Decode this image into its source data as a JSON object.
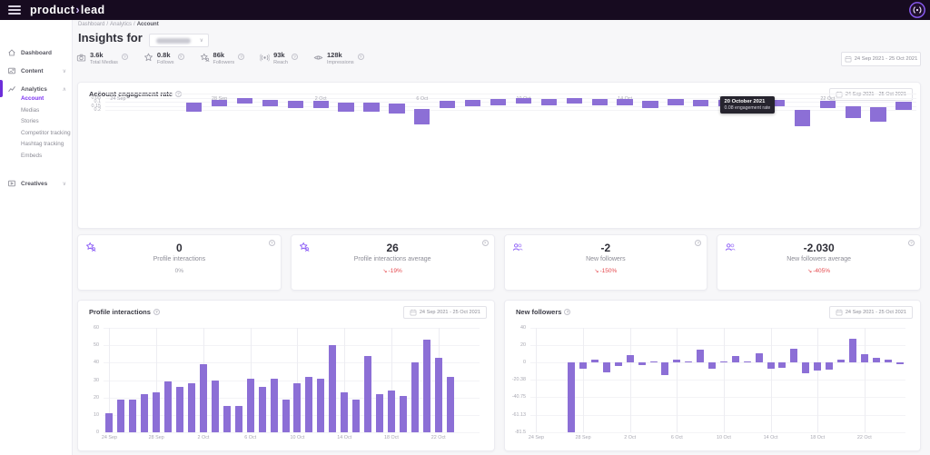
{
  "topbar": {
    "logo": {
      "part1": "product",
      "separator": "›",
      "part2": "lead"
    }
  },
  "icons": {
    "help": "?",
    "chevron_down": "∨",
    "chevron_up": "∧",
    "delta_down": "↘",
    "breadcrumb_sep": "/"
  },
  "breadcrumb": {
    "items": [
      "Dashboard",
      "Analytics",
      "Account"
    ]
  },
  "sidebar": {
    "items": [
      {
        "label": "Dashboard"
      },
      {
        "label": "Content",
        "chevron": "∨"
      },
      {
        "label": "Analytics",
        "chevron": "∧",
        "active": true
      },
      {
        "label": "Creatives",
        "chevron": "∨"
      }
    ],
    "submenu": [
      "Account",
      "Medias",
      "Stories",
      "Competitor tracking",
      "Hashtag tracking",
      "Embeds"
    ],
    "active_subitem": "Account"
  },
  "header": {
    "insights_for": "Insights for",
    "date_range": "24 Sep 2021 - 25 Oct 2021",
    "stats": [
      {
        "value": "3.6k",
        "label": "Total Medias",
        "icon": "camera-icon"
      },
      {
        "value": "0.8k",
        "label": "Follows",
        "icon": "star-icon"
      },
      {
        "value": "86k",
        "label": "Followers",
        "icon": "star-user-icon"
      },
      {
        "value": "93k",
        "label": "Reach",
        "icon": "broadcast-icon"
      },
      {
        "value": "128k",
        "label": "Impressions",
        "icon": "eye-icon"
      }
    ]
  },
  "summary_cards": [
    {
      "value": "0",
      "label": "Profile interactions",
      "delta": "0%",
      "negative": false,
      "icon": "star-user-icon"
    },
    {
      "value": "26",
      "label": "Profile interactions average",
      "delta": "-19%",
      "negative": true,
      "icon": "star-user-icon"
    },
    {
      "value": "-2",
      "label": "New followers",
      "delta": "-150%",
      "negative": true,
      "icon": "users-icon"
    },
    {
      "value": "-2.030",
      "label": "New followers average",
      "delta": "-405%",
      "negative": true,
      "icon": "users-icon"
    }
  ],
  "bar_color": "#8c6fd6",
  "chart_data": [
    {
      "id": "account_engagement_rate",
      "type": "bar",
      "title": "Account engagement rate",
      "date_range": "24 Sep 2021 - 25 Oct 2021",
      "ylim": [
        0,
        0.2
      ],
      "yticks": [
        0.2,
        0.15,
        0.1,
        0.05,
        0
      ],
      "xticks": [
        "24 Sep",
        "28 Sep",
        "2 Oct",
        "6 Oct",
        "10 Oct",
        "14 Oct",
        "18 Oct",
        "22 Oct"
      ],
      "xtick_step": 4,
      "x_start": "24 Sep 2021",
      "values": [
        null,
        null,
        null,
        0.11,
        0.08,
        0.06,
        0.08,
        0.09,
        0.09,
        0.11,
        0.11,
        0.12,
        0.19,
        0.09,
        0.08,
        0.07,
        0.06,
        0.07,
        0.06,
        0.07,
        0.07,
        0.09,
        0.07,
        0.08,
        0.08,
        0.08,
        0.08,
        0.2,
        0.09,
        0.15,
        0.17,
        0.1
      ],
      "tooltip": {
        "slot": 26,
        "value": 0.08,
        "title": "20 October 2021",
        "text": "0.08 engagement rate"
      }
    },
    {
      "id": "profile_interactions",
      "type": "bar",
      "title": "Profile interactions",
      "date_range": "24 Sep 2021 - 25 Oct 2021",
      "ylim": [
        0,
        60
      ],
      "yticks": [
        60,
        50,
        40,
        30,
        20,
        10,
        0
      ],
      "xticks": [
        "24 Sep",
        "28 Sep",
        "2 Oct",
        "6 Oct",
        "10 Oct",
        "14 Oct",
        "18 Oct",
        "22 Oct"
      ],
      "xtick_step": 4,
      "x_start": "24 Sep 2021",
      "values": [
        11,
        19,
        19,
        22,
        23,
        29,
        26,
        28,
        39,
        30,
        15,
        15,
        31,
        26,
        31,
        19,
        28,
        32,
        31,
        50,
        23,
        19,
        44,
        22,
        24,
        21,
        40,
        53,
        43,
        32,
        null,
        null
      ]
    },
    {
      "id": "new_followers",
      "type": "bar",
      "title": "New followers",
      "date_range": "24 Sep 2021 - 25 Oct 2021",
      "ylim": [
        -81.5,
        40
      ],
      "yticks": [
        40,
        20,
        0,
        -20.38,
        -40.75,
        -61.13,
        -81.5
      ],
      "xticks": [
        "24 Sep",
        "28 Sep",
        "2 Oct",
        "6 Oct",
        "10 Oct",
        "14 Oct",
        "18 Oct",
        "22 Oct"
      ],
      "xtick_step": 4,
      "x_start": "24 Sep 2021",
      "values": [
        null,
        null,
        null,
        -81.5,
        -8,
        3,
        -12,
        -4,
        8,
        -3,
        1,
        -15,
        3,
        1,
        15,
        -8,
        1,
        7,
        1,
        10,
        -8,
        -6,
        16,
        -13,
        -10,
        -9,
        3,
        27,
        9,
        5,
        3,
        -2
      ]
    }
  ]
}
